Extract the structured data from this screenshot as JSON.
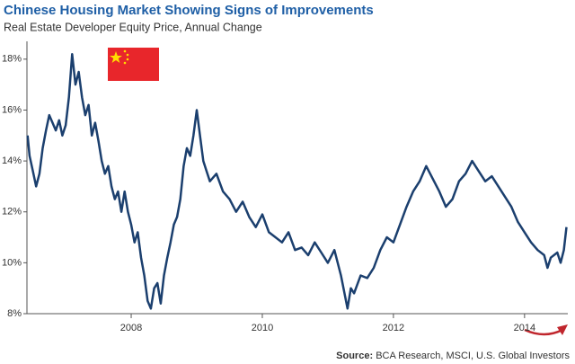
{
  "chart_data": {
    "type": "line",
    "title": "Chinese Housing Market Showing Signs of Improvements",
    "subtitle": "Real Estate Developer Equity Price, Annual Change",
    "source_label": "Source:",
    "source": "BCA Research, MSCI, U.S. Global Investors",
    "xlim": [
      2006.41,
      2014.66
    ],
    "xticks": [
      2008,
      2010,
      2012,
      2014
    ],
    "ylim": [
      8,
      18.7
    ],
    "yticks": [
      {
        "value": 8,
        "label": "8%"
      },
      {
        "value": 10,
        "label": "10%"
      },
      {
        "value": 12,
        "label": "12%"
      },
      {
        "value": 14,
        "label": "14%"
      },
      {
        "value": 16,
        "label": "16%"
      },
      {
        "value": 18,
        "label": "18%"
      }
    ],
    "grid": false,
    "series": [
      {
        "color": "#1b3f6e",
        "x": [
          2006.42,
          2006.45,
          2006.5,
          2006.55,
          2006.6,
          2006.65,
          2006.7,
          2006.75,
          2006.8,
          2006.85,
          2006.9,
          2006.95,
          2007.0,
          2007.05,
          2007.1,
          2007.15,
          2007.2,
          2007.25,
          2007.3,
          2007.35,
          2007.4,
          2007.45,
          2007.5,
          2007.55,
          2007.6,
          2007.65,
          2007.7,
          2007.75,
          2007.8,
          2007.85,
          2007.9,
          2007.95,
          2008.0,
          2008.05,
          2008.1,
          2008.15,
          2008.2,
          2008.25,
          2008.3,
          2008.35,
          2008.4,
          2008.45,
          2008.5,
          2008.55,
          2008.6,
          2008.65,
          2008.7,
          2008.75,
          2008.8,
          2008.85,
          2008.9,
          2008.95,
          2009.0,
          2009.05,
          2009.1,
          2009.15,
          2009.2,
          2009.3,
          2009.4,
          2009.5,
          2009.6,
          2009.7,
          2009.8,
          2009.9,
          2010.0,
          2010.1,
          2010.2,
          2010.3,
          2010.4,
          2010.5,
          2010.6,
          2010.7,
          2010.8,
          2010.9,
          2011.0,
          2011.1,
          2011.2,
          2011.3,
          2011.35,
          2011.4,
          2011.5,
          2011.6,
          2011.7,
          2011.8,
          2011.9,
          2012.0,
          2012.1,
          2012.2,
          2012.3,
          2012.4,
          2012.5,
          2012.6,
          2012.7,
          2012.8,
          2012.9,
          2013.0,
          2013.1,
          2013.2,
          2013.3,
          2013.4,
          2013.5,
          2013.6,
          2013.7,
          2013.8,
          2013.9,
          2014.0,
          2014.1,
          2014.2,
          2014.3,
          2014.35,
          2014.4,
          2014.5,
          2014.55,
          2014.6,
          2014.64
        ],
        "values": [
          15.0,
          14.2,
          13.6,
          13.0,
          13.5,
          14.5,
          15.2,
          15.8,
          15.5,
          15.2,
          15.6,
          15.0,
          15.4,
          16.5,
          18.2,
          17.0,
          17.5,
          16.5,
          15.8,
          16.2,
          15.0,
          15.5,
          14.8,
          14.0,
          13.5,
          13.8,
          13.0,
          12.5,
          12.8,
          12.0,
          12.8,
          12.0,
          11.5,
          10.8,
          11.2,
          10.2,
          9.5,
          8.5,
          8.2,
          9.0,
          9.2,
          8.4,
          9.5,
          10.2,
          10.8,
          11.5,
          11.8,
          12.5,
          13.8,
          14.5,
          14.2,
          15.0,
          16.0,
          15.0,
          14.0,
          13.6,
          13.2,
          13.5,
          12.8,
          12.5,
          12.0,
          12.4,
          11.8,
          11.4,
          11.9,
          11.2,
          11.0,
          10.8,
          11.2,
          10.5,
          10.6,
          10.3,
          10.8,
          10.4,
          10.0,
          10.5,
          9.5,
          8.2,
          9.0,
          8.8,
          9.5,
          9.4,
          9.8,
          10.5,
          11.0,
          10.8,
          11.5,
          12.2,
          12.8,
          13.2,
          13.8,
          13.3,
          12.8,
          12.2,
          12.5,
          13.2,
          13.5,
          14.0,
          13.6,
          13.2,
          13.4,
          13.0,
          12.6,
          12.2,
          11.6,
          11.2,
          10.8,
          10.5,
          10.3,
          9.8,
          10.2,
          10.4,
          10.0,
          10.5,
          11.4
        ]
      }
    ]
  }
}
